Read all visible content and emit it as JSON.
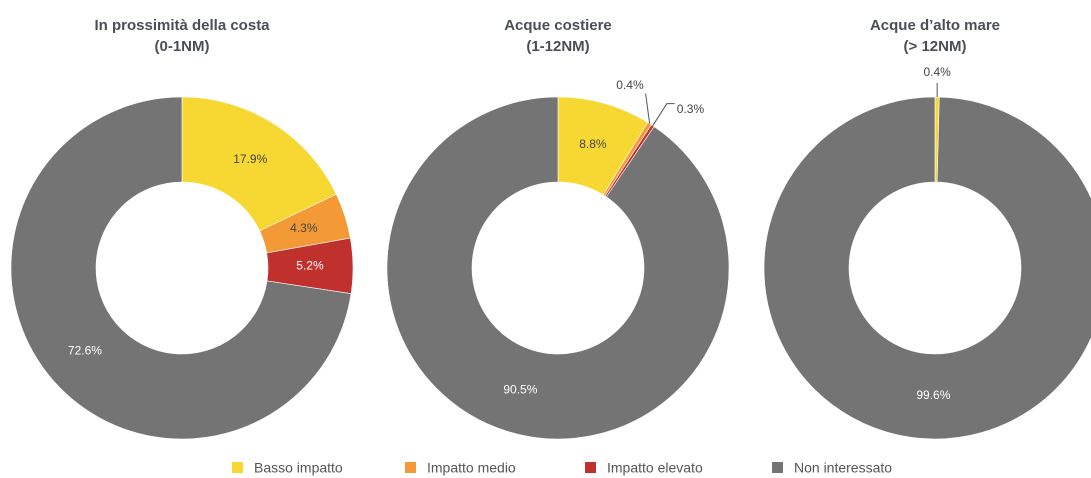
{
  "chart_data": [
    {
      "type": "pie",
      "title": [
        "In prossimità della costa",
        "(0-1NM)"
      ],
      "categories": [
        "Basso impatto",
        "Impatto medio",
        "Impatto elevato",
        "Non interessato"
      ],
      "colors": [
        "#f7d731",
        "#f39a36",
        "#c0302d",
        "#747474"
      ],
      "values": [
        17.9,
        4.3,
        5.2,
        72.6
      ],
      "value_labels": [
        "17.9%",
        "4.3%",
        "5.2%",
        "72.6%"
      ]
    },
    {
      "type": "pie",
      "title": [
        "Acque costiere",
        "(1-12NM)"
      ],
      "categories": [
        "Basso impatto",
        "Impatto medio",
        "Impatto elevato",
        "Non interessato"
      ],
      "colors": [
        "#f7d731",
        "#f39a36",
        "#c0302d",
        "#747474"
      ],
      "values": [
        8.8,
        0.4,
        0.3,
        90.5
      ],
      "value_labels": [
        "8.8%",
        "0.4%",
        "0.3%",
        "90.5%"
      ]
    },
    {
      "type": "pie",
      "title": [
        "Acque d’alto mare",
        "(> 12NM)"
      ],
      "categories": [
        "Basso impatto",
        "Impatto medio",
        "Impatto elevato",
        "Non interessato"
      ],
      "colors": [
        "#f7d731",
        "#f39a36",
        "#c0302d",
        "#747474"
      ],
      "values": [
        0.4,
        0,
        0,
        99.6
      ],
      "value_labels": [
        "0.4%",
        null,
        null,
        "99.6%"
      ]
    }
  ]
}
